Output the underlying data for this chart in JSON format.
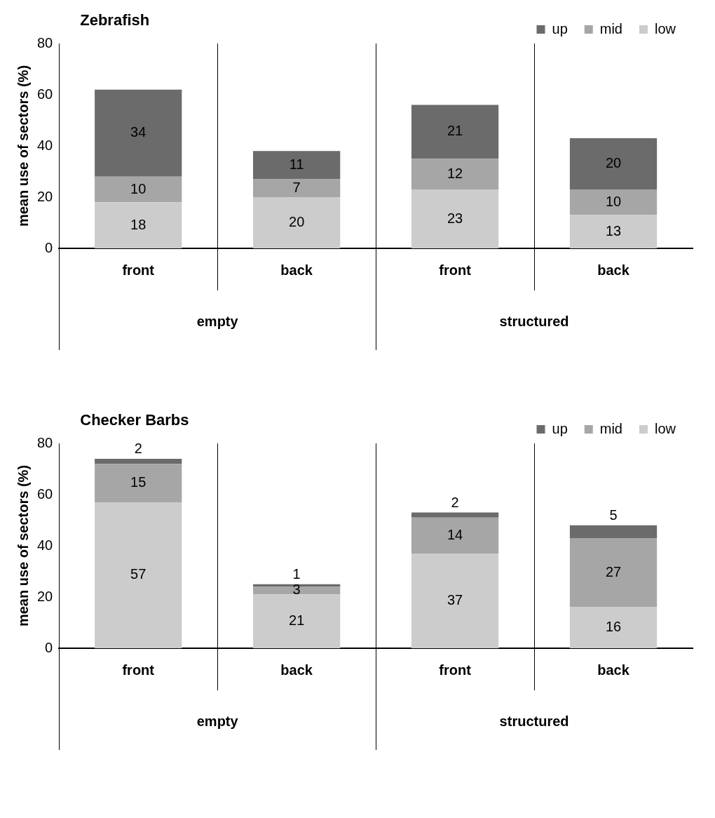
{
  "chart_data": [
    {
      "type": "bar",
      "title": "Zebrafish",
      "ylabel": "mean use of sectors (%)",
      "categories": [
        "front",
        "back",
        "front",
        "back"
      ],
      "stacked": true,
      "data_labels": true,
      "legend": "top right",
      "grid": false,
      "ylim": [
        0,
        80
      ],
      "yticks": [
        0,
        20,
        40,
        60,
        80
      ],
      "annotations": [
        "empty",
        "structured"
      ],
      "series": [
        {
          "name": "low",
          "color": "#cccccc",
          "values": [
            18,
            20,
            23,
            13
          ]
        },
        {
          "name": "mid",
          "color": "#a6a6a6",
          "values": [
            10,
            7,
            12,
            10
          ]
        },
        {
          "name": "up",
          "color": "#6b6b6b",
          "values": [
            34,
            11,
            21,
            20
          ]
        }
      ]
    },
    {
      "type": "bar",
      "title": "Checker Barbs",
      "ylabel": "mean use of sectors (%)",
      "categories": [
        "front",
        "back",
        "front",
        "back"
      ],
      "stacked": true,
      "data_labels": true,
      "legend": "top right",
      "grid": false,
      "ylim": [
        0,
        80
      ],
      "yticks": [
        0,
        20,
        40,
        60,
        80
      ],
      "annotations": [
        "empty",
        "structured"
      ],
      "series": [
        {
          "name": "low",
          "color": "#cccccc",
          "values": [
            57,
            21,
            37,
            16
          ]
        },
        {
          "name": "mid",
          "color": "#a6a6a6",
          "values": [
            15,
            3,
            14,
            27
          ]
        },
        {
          "name": "up",
          "color": "#6b6b6b",
          "values": [
            2,
            1,
            2,
            5
          ]
        }
      ]
    }
  ]
}
